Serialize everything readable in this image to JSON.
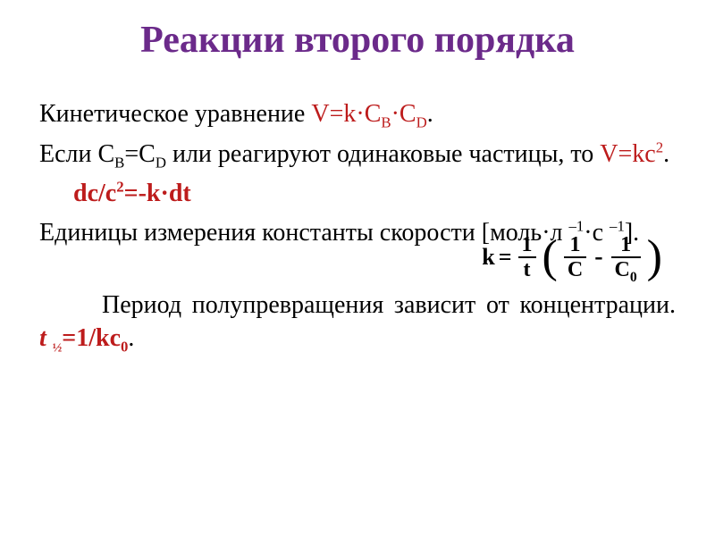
{
  "title": "Реакции второго порядка",
  "p1_a": "Кинетическое уравнение ",
  "p1_V": "V=k",
  "p1_dot1": "·",
  "p1_CB_c": "С",
  "p1_CB_s": "B",
  "p1_dot2": "·",
  "p1_CD_c": "С",
  "p1_CD_s": "D",
  "p1_end": ".",
  "p2_a": "Если С",
  "p2_B": "B",
  "p2_b": "=С",
  "p2_D": "D",
  "p2_c": " или реагируют одинаковые частицы, то ",
  "p2_V": "V=kс",
  "p2_sq": "2",
  "p2_end": ".",
  "p3": "dс/с",
  "p3_sq": "2",
  "p3_b": "=-k",
  "p3_dot": "·",
  "p3_dt": "dt",
  "p4_a": "Единицы измерения константы скорости [моль",
  "p4_dot1": "·",
  "p4_b": "л ",
  "p4_e1": "–1",
  "p4_dot2": "·",
  "p4_c": "с ",
  "p4_e2": "–1",
  "p4_end": "].",
  "p5_a": "Период полупревращения зависит от концентрации.            ",
  "p5_t": "t ",
  "p5_half": "½",
  "p5_eq": "=1/kс",
  "p5_zero": "0",
  "p5_end": ".",
  "formula": {
    "k": "k",
    "eq": "=",
    "one": "1",
    "t": "t",
    "C": "C",
    "C0": "C",
    "zero": "0",
    "minus": "-"
  }
}
